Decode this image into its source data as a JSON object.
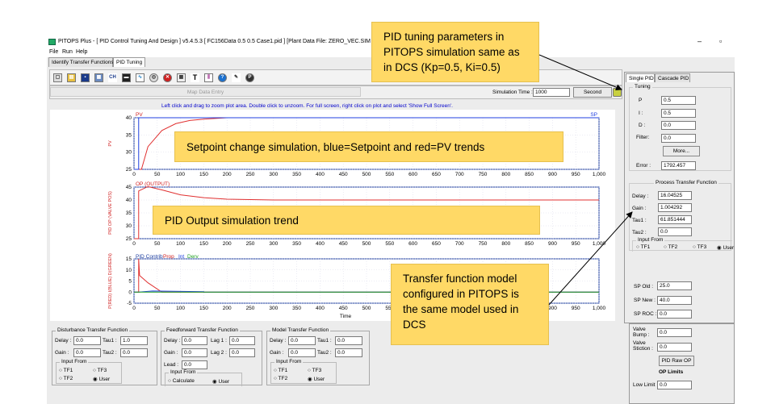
{
  "window": {
    "title": "PITOPS Plus - [ PID Control Tuning And Design ] v5.4.5.3   [ FC156Data 0.5 0.5 Case1.pid ]  [Plant Data File: ZERO_VEC.SIM ]",
    "minimize": "–",
    "maximize": "▫"
  },
  "menu": [
    "File",
    "Run",
    "Help"
  ],
  "tabs": [
    "Identify Transfer Functions",
    "PID Tuning"
  ],
  "toolbar": {
    "icons": [
      "zoom-icon",
      "open-icon",
      "save-icon",
      "print-icon",
      "ch-icon",
      "chart-icon",
      "wave-icon",
      "target-icon",
      "stop-icon",
      "grid-icon",
      "text-icon",
      "plot-icon",
      "help-icon",
      "pen-icon",
      "power-icon"
    ],
    "ch_label": "CH",
    "text_label": "T"
  },
  "subbar": {
    "map_button": "Map Data Entry",
    "sim_time_label": "Simulation Time :",
    "sim_time_value": "1000",
    "unit_button": "Second"
  },
  "plot_hint": "Left click and drag to zoom plot area. Double click to unzoom. For full screen, right click on plot and select 'Show Full Screen'.",
  "plots": {
    "pv": {
      "ylabel": "PV",
      "legend_left": "PV",
      "legend_right": "SP",
      "yticks": [
        "40",
        "35",
        "30",
        "25"
      ]
    },
    "op": {
      "ylabel": "PID OP (VALVE POS)",
      "legend_left": "OP (OUTPUT)",
      "yticks": [
        "45",
        "40",
        "35",
        "30",
        "25"
      ]
    },
    "contrib": {
      "ylabel": "P(RED)  I(BLUE)  D(GREEN)",
      "legend": [
        "PID Contrib",
        "Prop",
        "Int",
        "Derv"
      ],
      "yticks": [
        "15",
        "10",
        "5",
        "0",
        "-5"
      ]
    },
    "xticks": [
      "0",
      "50",
      "100",
      "150",
      "200",
      "250",
      "300",
      "350",
      "400",
      "450",
      "500",
      "550",
      "600",
      "650",
      "700",
      "750",
      "800",
      "850",
      "900",
      "950",
      "1,000"
    ],
    "xlabel": "Time"
  },
  "chart_data": [
    {
      "type": "line",
      "ylabel": "PV",
      "ylim": [
        25,
        40
      ],
      "xlim": [
        0,
        1000
      ],
      "series": [
        {
          "name": "PV",
          "color": "#e03030",
          "x": [
            0,
            16,
            30,
            60,
            90,
            120,
            150,
            200,
            1000
          ],
          "values": [
            25,
            25,
            31.6,
            36.3,
            38.3,
            39.2,
            39.6,
            40,
            40
          ]
        },
        {
          "name": "SP",
          "color": "#2040e0",
          "x": [
            0,
            10,
            10,
            1000
          ],
          "values": [
            25,
            25,
            40,
            40
          ]
        }
      ]
    },
    {
      "type": "line",
      "ylabel": "PID OP (VALVE POS)",
      "ylim": [
        25,
        45
      ],
      "xlim": [
        0,
        1000
      ],
      "series": [
        {
          "name": "OP (OUTPUT)",
          "color": "#e03030",
          "x": [
            0,
            10,
            10,
            30,
            60,
            100,
            150,
            200,
            300,
            1000
          ],
          "values": [
            25,
            25,
            43.5,
            45.2,
            43.9,
            42.0,
            40.9,
            40.3,
            40,
            40
          ]
        }
      ]
    },
    {
      "type": "line",
      "ylabel": "P(RED)  I(BLUE)  D(GREEN)",
      "ylim": [
        -5,
        15
      ],
      "xlim": [
        0,
        1000
      ],
      "series": [
        {
          "name": "Prop",
          "color": "#e03030",
          "x": [
            0,
            10,
            10,
            12,
            30,
            60,
            1000
          ],
          "values": [
            0,
            0,
            15,
            7.5,
            4.2,
            0,
            0
          ]
        },
        {
          "name": "Int",
          "color": "#2040e0",
          "x": [
            0,
            10,
            40,
            150,
            150,
            1000
          ],
          "values": [
            0,
            0,
            0.5,
            0.2,
            0,
            0
          ]
        },
        {
          "name": "Derv",
          "color": "#20a020",
          "x": [
            0,
            1000
          ],
          "values": [
            0,
            0
          ]
        }
      ]
    }
  ],
  "right_panel": {
    "tabs": [
      "Single PID",
      "Cascade PID"
    ],
    "tuning_caption": "Tuning",
    "p_label": "P",
    "p_value": "0.5",
    "i_label": "I :",
    "i_value": "0.5",
    "d_label": "D :",
    "d_value": "0.0",
    "filter_label": "Filter:",
    "filter_value": "0.0",
    "more_button": "More...",
    "error_label": "Error :",
    "error_value": "1792.457",
    "ptf_caption": "Process Transfer Function",
    "delay_label": "Delay :",
    "delay_value": "16.04525",
    "gain_label": "Gain :",
    "gain_value": "1.004292",
    "tau1_label": "Tau1 :",
    "tau1_value": "61.851444",
    "tau2_label": "Tau2 :",
    "tau2_value": "0.0",
    "input_from_caption": "Input From",
    "radios": [
      "TF1",
      "TF2",
      "TF3",
      "User"
    ],
    "sp_old_label": "SP Old :",
    "sp_old_value": "25.0",
    "sp_new_label": "SP New :",
    "sp_new_value": "40.0",
    "sp_roc_label": "SP ROC :",
    "sp_roc_value": "0.0"
  },
  "valve_panel": {
    "bump_label_1": "Valve",
    "bump_label_2": "Bump :",
    "bump_value": "0.0",
    "stiction_label_1": "Valve",
    "stiction_label_2": "Stiction :",
    "stiction_value": "0.0",
    "raw_op_button": "PID Raw OP",
    "op_limits": "OP Limits",
    "low_limit_label": "Low Limit",
    "low_limit_value": "0.0"
  },
  "bottom": {
    "disturbance": {
      "caption": "Disturbance Transfer Function",
      "delay_label": "Delay :",
      "delay_value": "0.0",
      "tau1_label": "Tau1 :",
      "tau1_value": "1.0",
      "gain_label": "Gain :",
      "gain_value": "0.0",
      "tau2_label": "Tau2 :",
      "tau2_value": "0.0",
      "input_from": "Input From",
      "radios": [
        "TF1",
        "TF3",
        "TF2",
        "User"
      ]
    },
    "feedforward": {
      "caption": "Feedforward Transfer Function",
      "delay_label": "Delay :",
      "delay_value": "0.0",
      "lag1_label": "Lag 1 :",
      "lag1_value": "0.0",
      "gain_label": "Gain :",
      "gain_value": "0.0",
      "lag2_label": "Lag 2 :",
      "lag2_value": "0.0",
      "lead_label": "Lead :",
      "lead_value": "0.0",
      "input_from": "Input From",
      "radios": [
        "Calculate",
        "User"
      ]
    },
    "model": {
      "caption": "Model Transfer Function",
      "delay_label": "Delay :",
      "delay_value": "0.0",
      "tau1_label": "Tau1 :",
      "tau1_value": "0.0",
      "gain_label": "Gain :",
      "gain_value": "0.0",
      "tau2_label": "Tau2 :",
      "tau2_value": "0.0",
      "input_from": "Input From",
      "radios": [
        "TF1",
        "TF3",
        "TF2",
        "User"
      ]
    }
  },
  "callouts": {
    "tuning": "PID tuning parameters in PITOPS simulation same as in DCS (Kp=0.5, Ki=0.5)",
    "setpoint": "Setpoint change simulation, blue=Setpoint and red=PV trends",
    "output": "PID Output simulation trend",
    "transfer": "Transfer function model configured in PITOPS is the same model used in DCS"
  },
  "colors": {
    "callout_bg": "#ffd966",
    "pv": "#e03030",
    "sp": "#2040e0",
    "derv": "#20a020"
  }
}
